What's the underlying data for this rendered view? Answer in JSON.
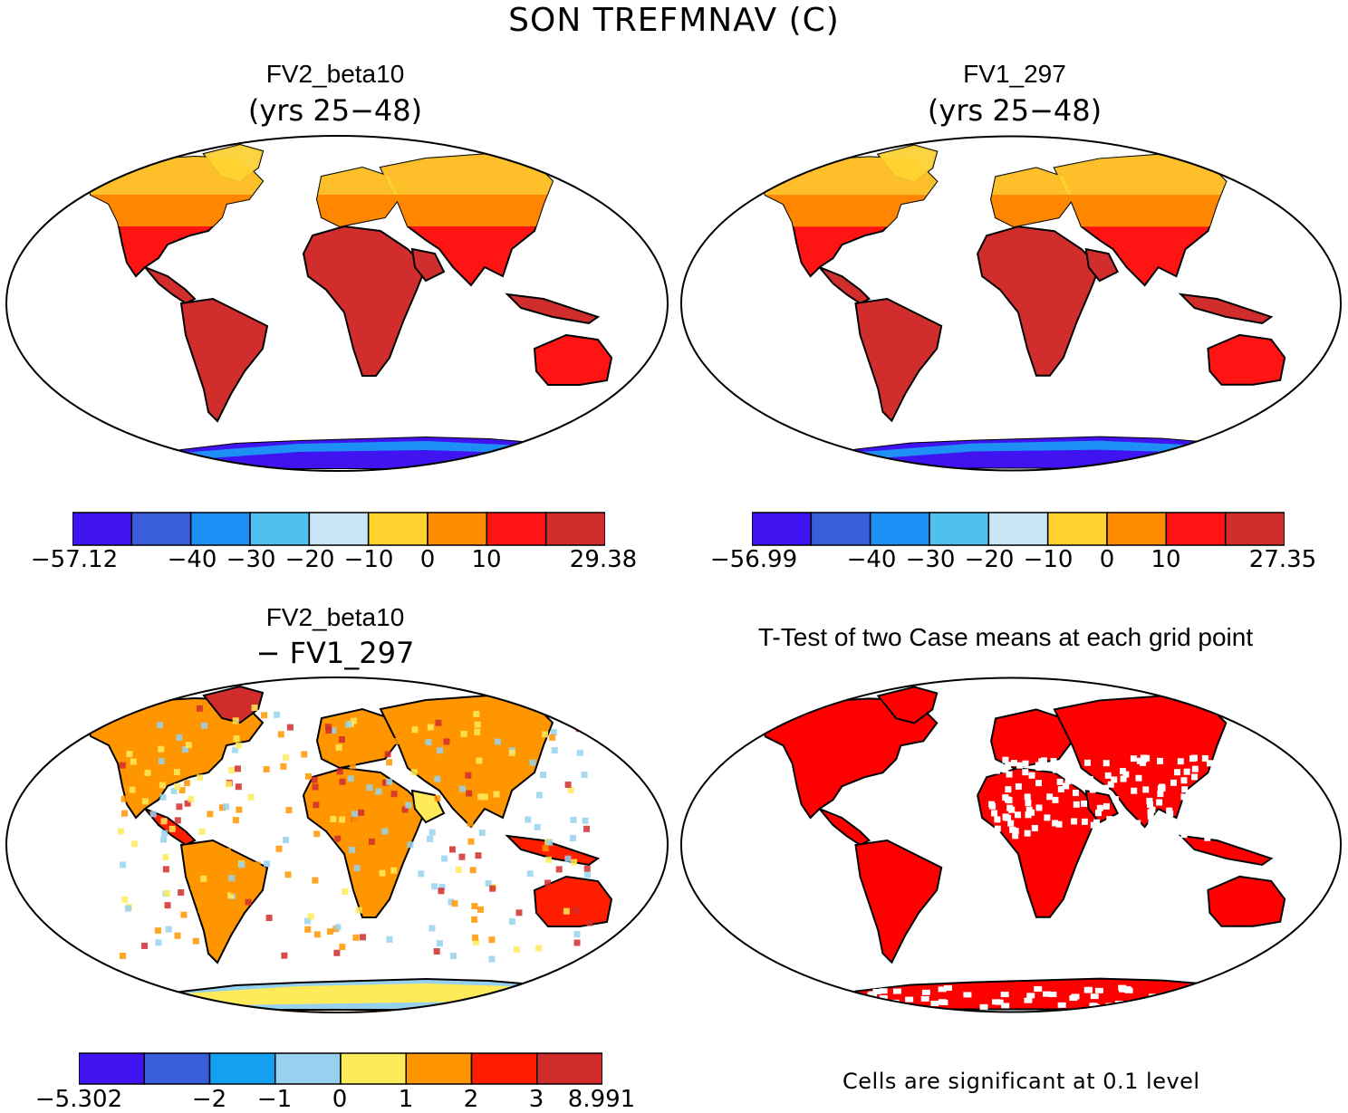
{
  "title": "SON TREFMNAV (C)",
  "panels": [
    {
      "title": "FV2_beta10",
      "subtitle": "(yrs 25-48)"
    },
    {
      "title": "FV1_297",
      "subtitle": "(yrs 25-48)"
    },
    {
      "title": "FV2_beta10",
      "subtitle": "- FV1_297"
    },
    {
      "title": "T-Test of two Case means at each grid point",
      "subtitle": ""
    }
  ],
  "colorbars": [
    {
      "colors": [
        "#3f14f0",
        "#3a5ddc",
        "#1e90f5",
        "#50c0f0",
        "#c8e6f5",
        "#ffd22d",
        "#ff8c00",
        "#ff1414",
        "#d22d2d"
      ],
      "ticks": [
        "-57.12",
        "-40",
        "-30",
        "-20",
        "-10",
        "0",
        "10",
        "29.38"
      ]
    },
    {
      "colors": [
        "#3f14f0",
        "#3a5ddc",
        "#1e90f5",
        "#50c0f0",
        "#c8e6f5",
        "#ffd22d",
        "#ff8c00",
        "#ff1414",
        "#d22d2d"
      ],
      "ticks": [
        "-56.99",
        "-40",
        "-30",
        "-20",
        "-10",
        "0",
        "10",
        "27.35"
      ]
    },
    {
      "colors": [
        "#3f14f0",
        "#3a5ddc",
        "#14a0f0",
        "#96d2f0",
        "#ffeb5a",
        "#ff9600",
        "#ff1e00",
        "#d22d2d"
      ],
      "ticks": [
        "-5.302",
        "-2",
        "-1",
        "0",
        "1",
        "2",
        "3",
        "8.991"
      ]
    }
  ],
  "ttest_note": "Cells are significant at 0.1 level",
  "legend_colors": {
    "significant": "#ff0000",
    "ocean": "#ffffff",
    "coast": "#000000"
  }
}
